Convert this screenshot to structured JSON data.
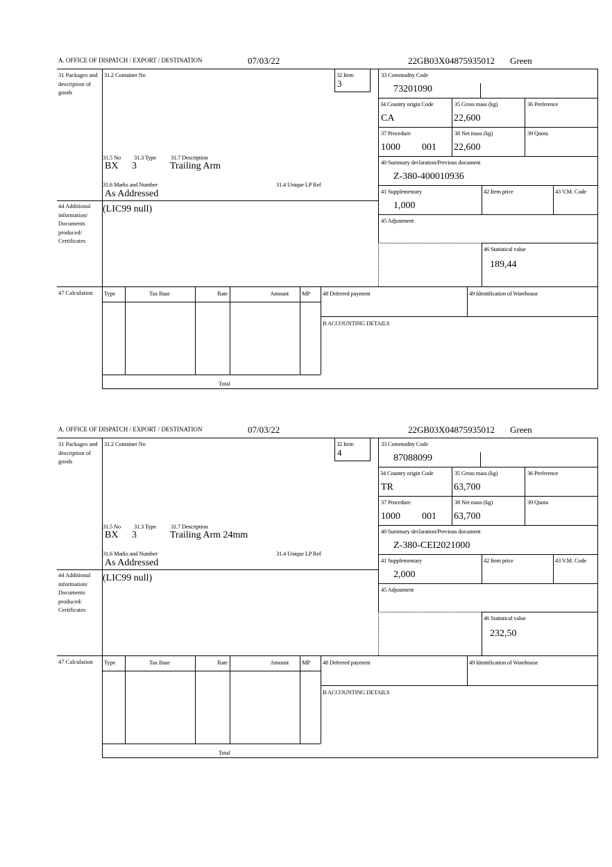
{
  "labels": {
    "office": "A. OFFICE OF DISPATCH / EXPORT / DESTINATION",
    "packages": "31 Packages and description of goods",
    "container": "31.2 Container No",
    "item": "32 Item",
    "no": "31.5 No",
    "type": "31.3 Type",
    "description": "31.7 Description",
    "marks": "31.6 Marks and Number",
    "unique_ref": "31.4 Unique LP Ref",
    "commodity": "33 Commodity Code",
    "country": "34 Country origin Code",
    "gross": "35 Gross mass (kg)",
    "preference": "36 Preference",
    "procedure": "37 Procedure",
    "net": "38 Net mass (kg)",
    "quota": "39 Quota",
    "summary": "40 Summary declaration/Previous document",
    "supplementary": "41 Supplementary",
    "item_price": "42 Item price",
    "vm_code": "43 V.M. Code",
    "additional": "44 Additional information/ Documents produced/ Certificates",
    "adjustment": "45 Adjustment",
    "statistical": "46 Statistical value",
    "calculation": "47 Calculation",
    "calc_cols": [
      "Type",
      "Tax Base",
      "Rate",
      "Amount",
      "MP"
    ],
    "total": "Total",
    "deferred": "48 Deferred payment",
    "warehouse": "49 Identification of Warehouse",
    "accounting": "B ACCOUNTING DETAILS"
  },
  "forms": [
    {
      "date": "07/03/22",
      "reference": "22GB03X04875935012",
      "route": "Green",
      "item": "3",
      "no": "BX",
      "type": "3",
      "description": "Trailing Arm",
      "marks": "As Addressed",
      "commodity": "73201090",
      "country": "CA",
      "gross": "22,600",
      "procedure": "1000",
      "procedure_add": "001",
      "net": "22,600",
      "summary": "Z-380-400010936",
      "supplementary": "1,000",
      "additional": "(LIC99 null)",
      "statistical": "189,44"
    },
    {
      "date": "07/03/22",
      "reference": "22GB03X04875935012",
      "route": "Green",
      "item": "4",
      "no": "BX",
      "type": "3",
      "description": "Trailing Arm 24mm",
      "marks": "As Addressed",
      "commodity": "87088099",
      "country": "TR",
      "gross": "63,700",
      "procedure": "1000",
      "procedure_add": "001",
      "net": "63,700",
      "summary": "Z-380-CEI2021000",
      "supplementary": "2,000",
      "additional": "(LIC99 null)",
      "statistical": "232,50"
    }
  ]
}
